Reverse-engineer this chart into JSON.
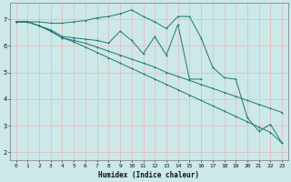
{
  "xlabel": "Humidex (Indice chaleur)",
  "bg_color": "#cce8e8",
  "line_color": "#1a7a6e",
  "grid_color": "#b0d8d8",
  "ylim": [
    1.7,
    7.6
  ],
  "xlim": [
    -0.5,
    23.5
  ],
  "yticks": [
    2,
    3,
    4,
    5,
    6,
    7
  ],
  "xticks": [
    0,
    1,
    2,
    3,
    4,
    5,
    6,
    7,
    8,
    9,
    10,
    11,
    12,
    13,
    14,
    15,
    16,
    17,
    18,
    19,
    20,
    21,
    22,
    23
  ],
  "line1_x": [
    0,
    1,
    2,
    3,
    4,
    5,
    6,
    7,
    8,
    9,
    10,
    11,
    12,
    13,
    14,
    15,
    16,
    17,
    18,
    19,
    20,
    21,
    22,
    23
  ],
  "line1_y": [
    6.9,
    6.9,
    6.9,
    6.85,
    6.85,
    6.9,
    6.95,
    7.05,
    7.1,
    7.2,
    7.35,
    7.1,
    6.9,
    6.65,
    7.1,
    7.1,
    6.3,
    5.2,
    4.8,
    4.75,
    3.3,
    2.8,
    3.05,
    2.35
  ],
  "line2_x": [
    0,
    1,
    2,
    3,
    4,
    5,
    6,
    7,
    8,
    9,
    10,
    11,
    12,
    13,
    14,
    15,
    16
  ],
  "line2_y": [
    6.9,
    6.9,
    6.75,
    6.6,
    6.35,
    6.3,
    6.25,
    6.2,
    6.1,
    6.55,
    6.2,
    5.7,
    6.35,
    5.65,
    6.8,
    4.75,
    4.75
  ],
  "line3_x": [
    0,
    1,
    2,
    3,
    4,
    5,
    6,
    7,
    8,
    9,
    10,
    11,
    12,
    13,
    14,
    15,
    16,
    17,
    18,
    19,
    20,
    21,
    22,
    23
  ],
  "line3_y": [
    6.9,
    6.9,
    6.75,
    6.55,
    6.3,
    6.2,
    6.1,
    5.95,
    5.8,
    5.65,
    5.5,
    5.35,
    5.2,
    5.0,
    4.85,
    4.7,
    4.55,
    4.4,
    4.25,
    4.1,
    3.95,
    3.8,
    3.65,
    3.5
  ],
  "line4_x": [
    0,
    1,
    2,
    3,
    4,
    5,
    6,
    7,
    8,
    9,
    10,
    11,
    12,
    13,
    14,
    15,
    16,
    17,
    18,
    19,
    20,
    21,
    22,
    23
  ],
  "line4_y": [
    6.9,
    6.9,
    6.75,
    6.55,
    6.3,
    6.15,
    5.95,
    5.75,
    5.55,
    5.35,
    5.15,
    4.95,
    4.75,
    4.55,
    4.35,
    4.15,
    3.95,
    3.75,
    3.55,
    3.35,
    3.15,
    2.95,
    2.75,
    2.35
  ]
}
